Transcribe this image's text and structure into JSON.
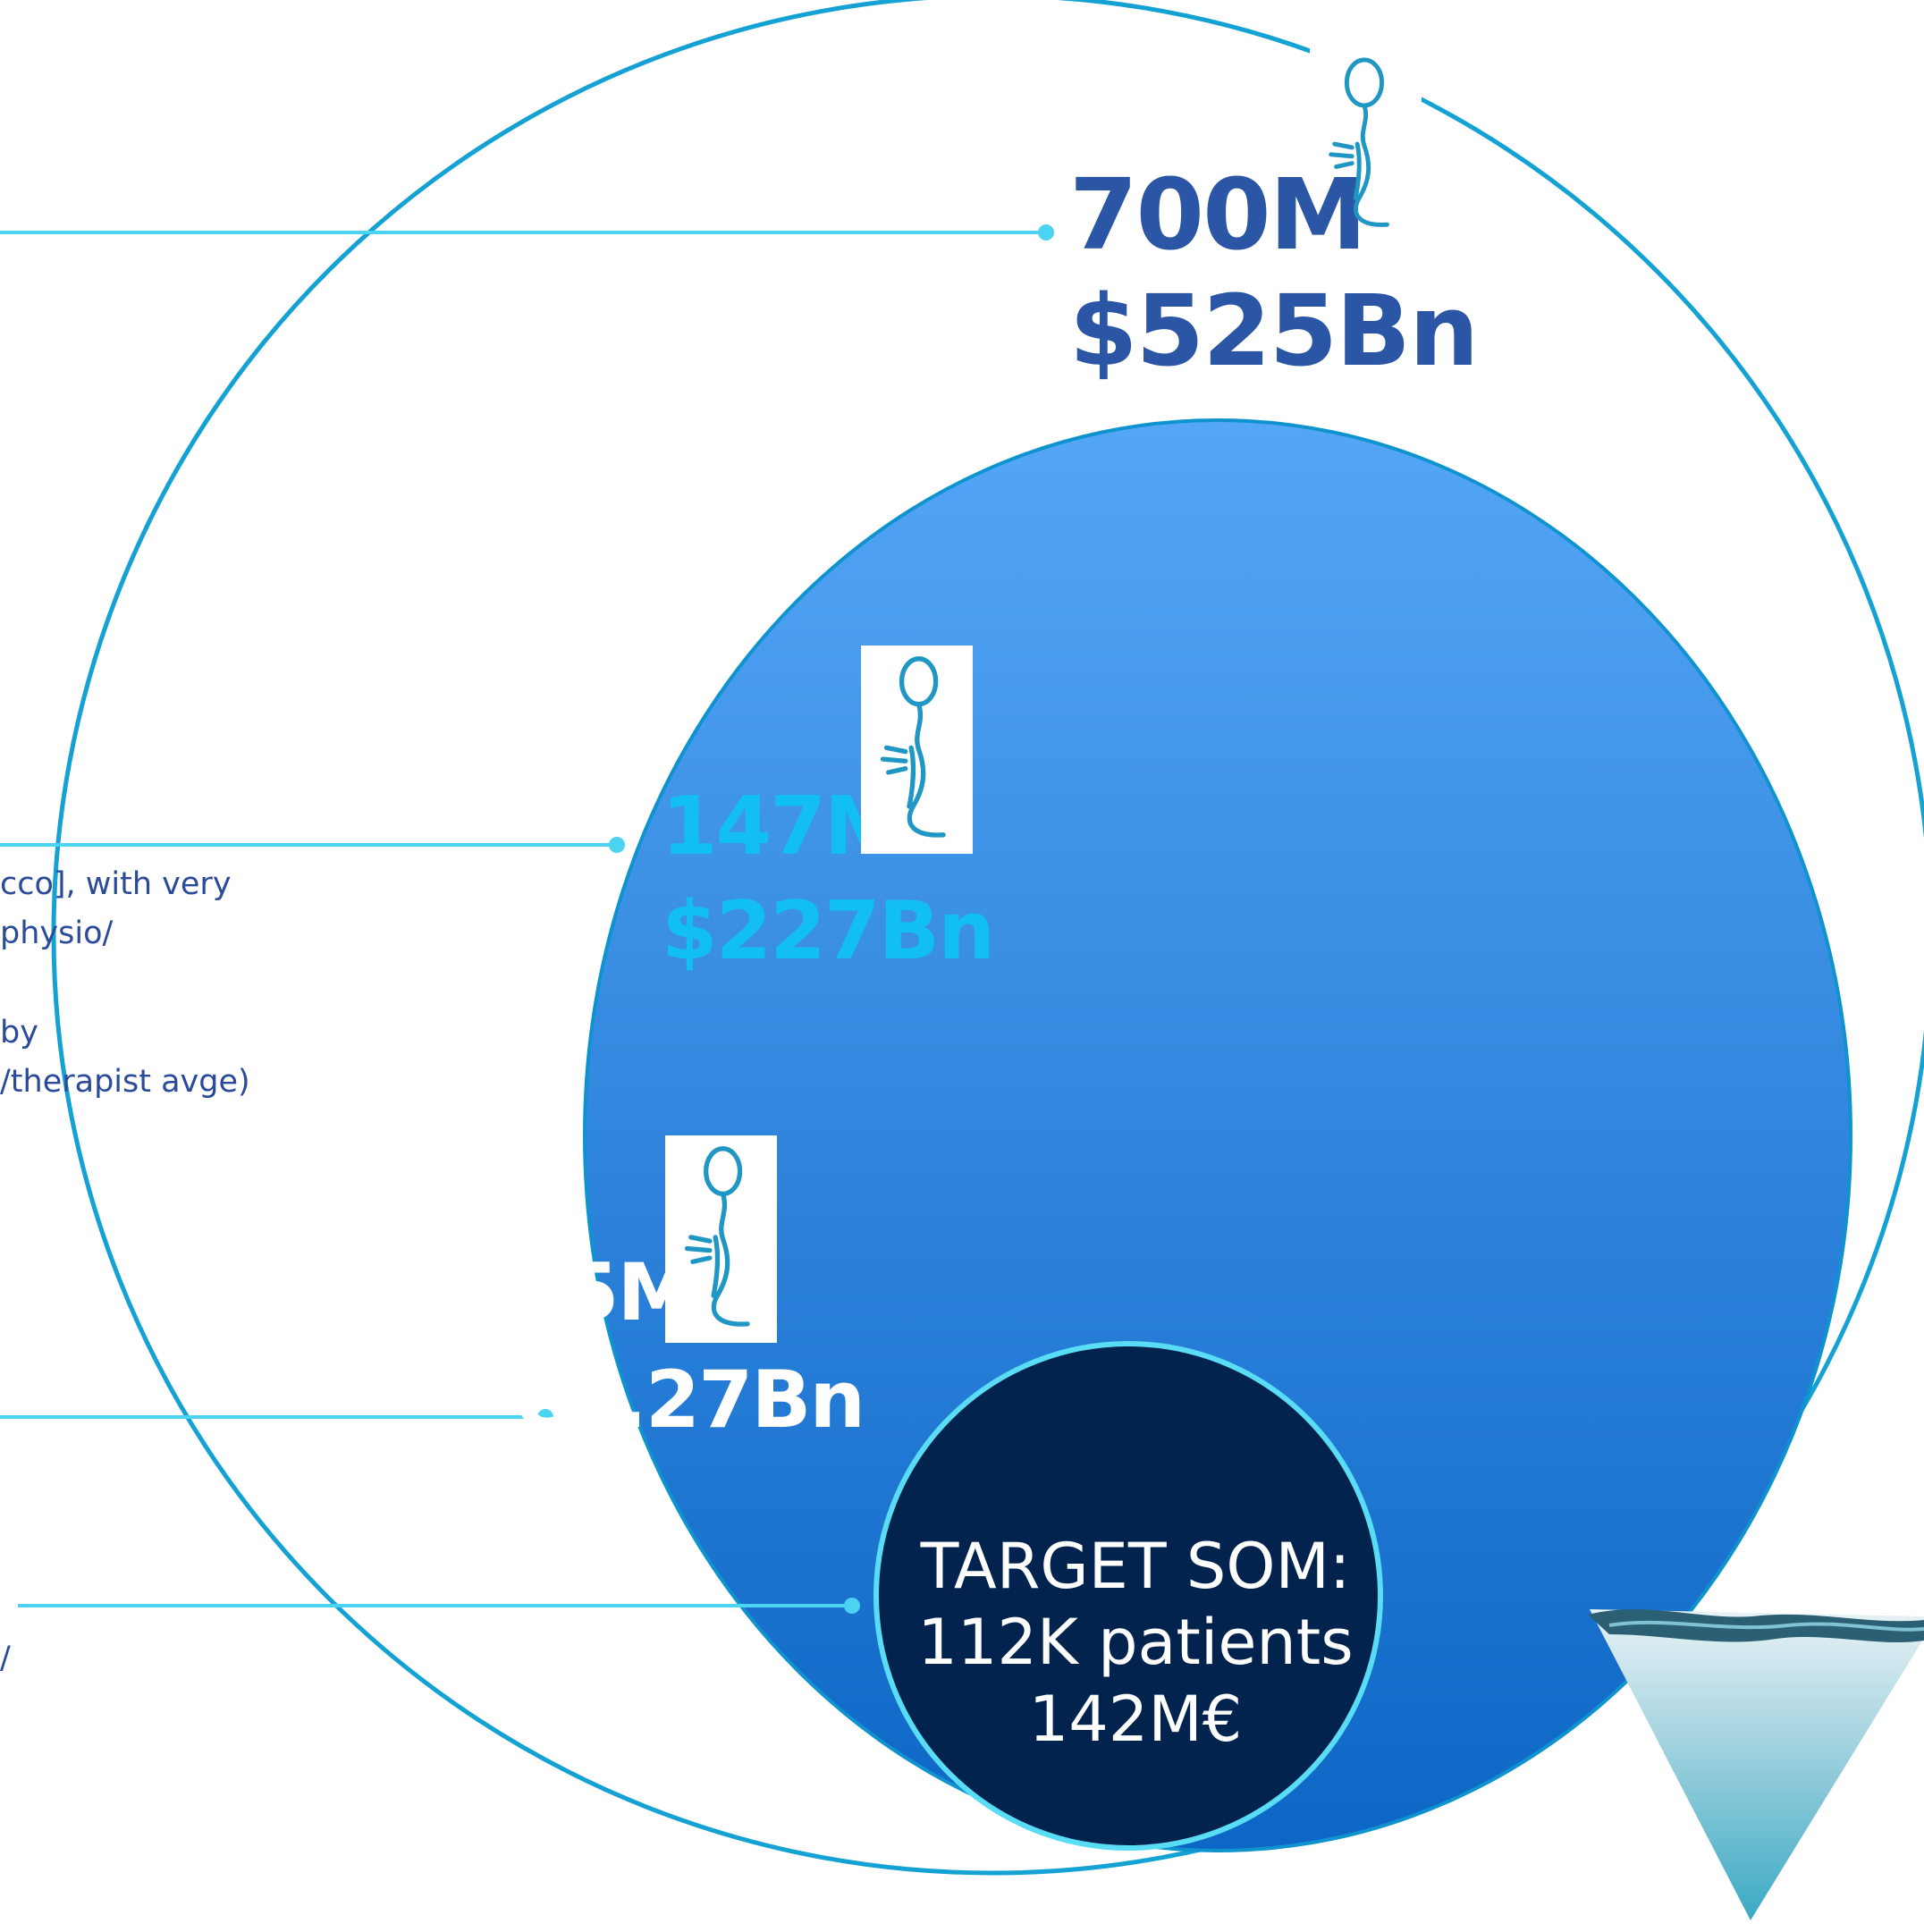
{
  "colors": {
    "outer_ring": "#14a1d3",
    "connector": "#4dd3f2",
    "sam_gradient_top": "#54a6f6",
    "sam_gradient_bottom": "#0d66c5",
    "som_fill": "#03234f",
    "som_ring": "#59dcf5",
    "tam_text": "#2b56a5",
    "sam_text": "#12bff4",
    "body_text": "#2a4a9a"
  },
  "side_text": {
    "line1": "cco], with very",
    "line2": " physio/",
    "line3": "by",
    "line4": "/therapist avge)",
    "line5": "/"
  },
  "tam": {
    "patients": "700M",
    "value": "$525Bn",
    "icon": "patient-figure-icon"
  },
  "sam": {
    "patients": "147M",
    "value": "$227Bn",
    "icon": "patient-figure-icon"
  },
  "som": {
    "patients": "15M",
    "value": "€2.27Bn",
    "icon": "patient-figure-icon"
  },
  "target": {
    "line1": "TARGET SOM:",
    "line2": "112K patients",
    "line3": "142M€"
  },
  "iceberg": {
    "icon": "iceberg-icon"
  }
}
